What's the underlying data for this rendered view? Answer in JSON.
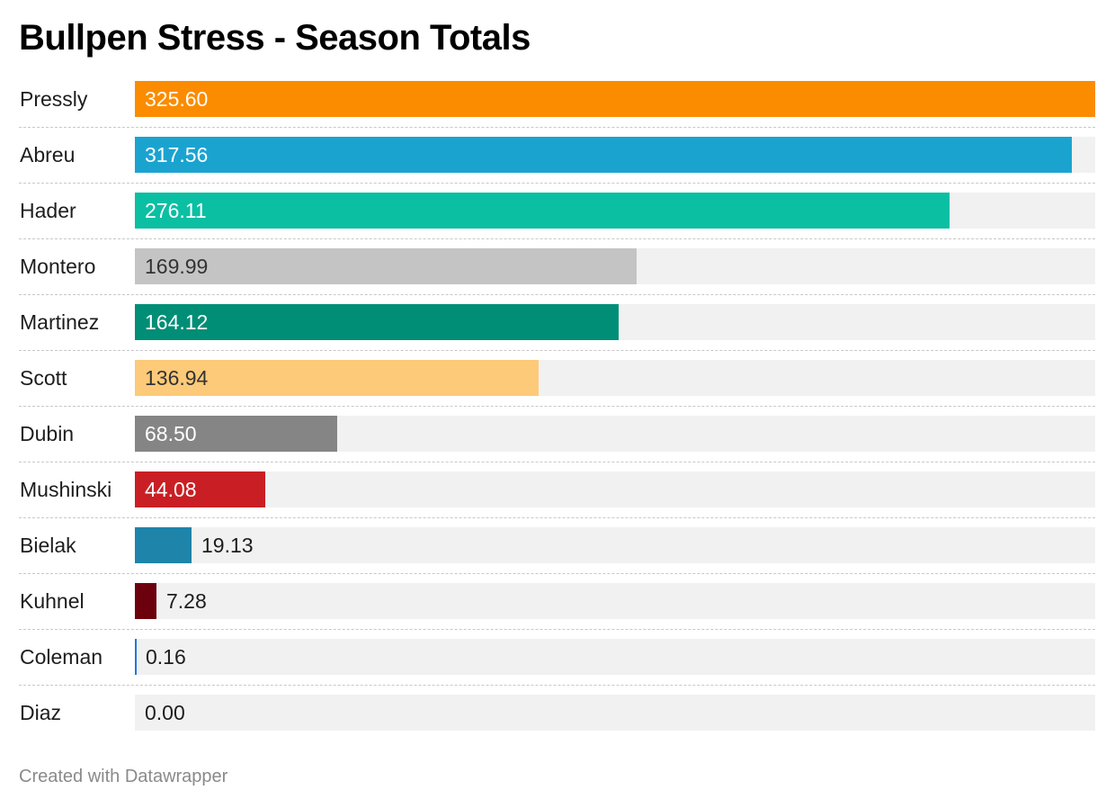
{
  "chart_data": {
    "type": "bar",
    "orientation": "horizontal",
    "title": "Bullpen Stress - Season Totals",
    "categories": [
      "Pressly",
      "Abreu",
      "Hader",
      "Montero",
      "Martinez",
      "Scott",
      "Dubin",
      "Mushinski",
      "Bielak",
      "Kuhnel",
      "Coleman",
      "Diaz"
    ],
    "values": [
      325.6,
      317.56,
      276.11,
      169.99,
      164.12,
      136.94,
      68.5,
      44.08,
      19.13,
      7.28,
      0.16,
      0.0
    ],
    "value_labels": [
      "325.60",
      "317.56",
      "276.11",
      "169.99",
      "164.12",
      "136.94",
      "68.50",
      "44.08",
      "19.13",
      "7.28",
      "0.16",
      "0.00"
    ],
    "colors": [
      "#fb8c00",
      "#1ba3d0",
      "#0bbfa3",
      "#c4c4c4",
      "#008e76",
      "#fdca79",
      "#858585",
      "#c91f24",
      "#1e84aa",
      "#6d000d",
      "#1a7ad9",
      "#c4c4c4"
    ],
    "xlim": [
      0,
      325.6
    ],
    "grid": false,
    "legend": "none"
  },
  "footer": {
    "credit": "Created with Datawrapper"
  }
}
